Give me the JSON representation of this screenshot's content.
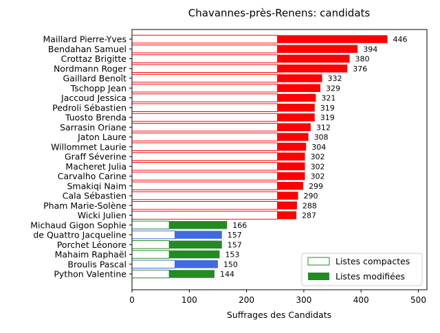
{
  "chart_data": {
    "type": "bar",
    "orientation": "horizontal",
    "title": "Chavannes-près-Renens: candidats",
    "xlabel": "Suffrages des Candidats",
    "ylabel": "",
    "xlim": [
      0,
      515
    ],
    "xticks": [
      0,
      100,
      200,
      300,
      400,
      500
    ],
    "grid": false,
    "legend_position": "bottom-right",
    "legend": [
      {
        "name": "Listes compactes",
        "style": "outline"
      },
      {
        "name": "Listes modifiées",
        "style": "filled"
      }
    ],
    "colors": {
      "red": "#ff0000",
      "blue": "#4169e1",
      "green": "#228b22"
    },
    "categories": [
      {
        "name": "Maillard Pierre-Yves",
        "compactes": 254,
        "total": 446,
        "color": "red"
      },
      {
        "name": "Bendahan Samuel",
        "compactes": 254,
        "total": 394,
        "color": "red"
      },
      {
        "name": "Crottaz Brigitte",
        "compactes": 254,
        "total": 380,
        "color": "red"
      },
      {
        "name": "Nordmann Roger",
        "compactes": 254,
        "total": 376,
        "color": "red"
      },
      {
        "name": "Gaillard Benoît",
        "compactes": 254,
        "total": 332,
        "color": "red"
      },
      {
        "name": "Tschopp Jean",
        "compactes": 254,
        "total": 329,
        "color": "red"
      },
      {
        "name": "Jaccoud Jessica",
        "compactes": 254,
        "total": 321,
        "color": "red"
      },
      {
        "name": "Pedroli Sébastien",
        "compactes": 254,
        "total": 319,
        "color": "red"
      },
      {
        "name": "Tuosto Brenda",
        "compactes": 254,
        "total": 319,
        "color": "red"
      },
      {
        "name": "Sarrasin Oriane",
        "compactes": 254,
        "total": 312,
        "color": "red"
      },
      {
        "name": "Jaton Laure",
        "compactes": 254,
        "total": 308,
        "color": "red"
      },
      {
        "name": "Willommet Laurie",
        "compactes": 254,
        "total": 304,
        "color": "red"
      },
      {
        "name": "Graff Séverine",
        "compactes": 254,
        "total": 302,
        "color": "red"
      },
      {
        "name": "Macheret Julia",
        "compactes": 254,
        "total": 302,
        "color": "red"
      },
      {
        "name": "Carvalho Carine",
        "compactes": 254,
        "total": 302,
        "color": "red"
      },
      {
        "name": "Smakiqi Naim",
        "compactes": 254,
        "total": 299,
        "color": "red"
      },
      {
        "name": "Cala Sébastien",
        "compactes": 254,
        "total": 290,
        "color": "red"
      },
      {
        "name": "Pham Marie-Solène",
        "compactes": 254,
        "total": 288,
        "color": "red"
      },
      {
        "name": "Wicki Julien",
        "compactes": 254,
        "total": 287,
        "color": "red"
      },
      {
        "name": "Michaud Gigon Sophie",
        "compactes": 65,
        "total": 166,
        "color": "green"
      },
      {
        "name": "de Quattro Jacqueline",
        "compactes": 75,
        "total": 157,
        "color": "blue"
      },
      {
        "name": "Porchet Léonore",
        "compactes": 65,
        "total": 157,
        "color": "green"
      },
      {
        "name": "Mahaim Raphaël",
        "compactes": 65,
        "total": 153,
        "color": "green"
      },
      {
        "name": "Broulis Pascal",
        "compactes": 75,
        "total": 150,
        "color": "blue"
      },
      {
        "name": "Python Valentine",
        "compactes": 65,
        "total": 144,
        "color": "green"
      }
    ]
  }
}
